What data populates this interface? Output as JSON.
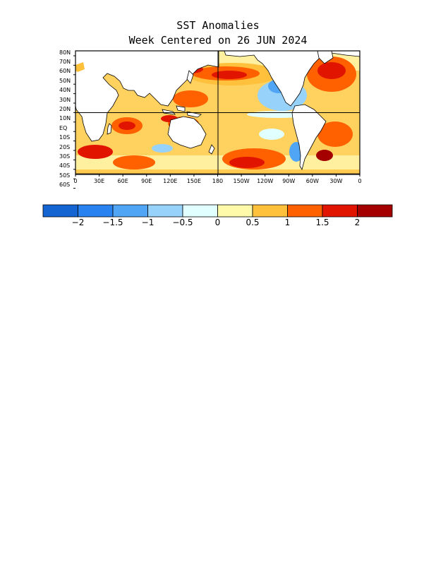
{
  "title": "SST Anomalies",
  "subtitle": "Week Centered on 26 JUN 2024",
  "map": {
    "projection": "equirectangular",
    "lon_range": [
      0,
      360
    ],
    "lat_range": [
      -65,
      85
    ],
    "center_lines": [
      "Equator",
      "180"
    ]
  },
  "lat_labels": [
    "80N",
    "70N",
    "60N",
    "50N",
    "40N",
    "30N",
    "20N",
    "10N",
    "EQ",
    "10S",
    "20S",
    "30S",
    "40S",
    "50S",
    "60S"
  ],
  "lon_labels": [
    "0",
    "30E",
    "60E",
    "90E",
    "120E",
    "150E",
    "180",
    "150W",
    "120W",
    "90W",
    "60W",
    "30W",
    "0"
  ],
  "colorbar": {
    "colors": [
      "#1464d2",
      "#2882f0",
      "#50a5f5",
      "#96d2fa",
      "#e1ffff",
      "#fffaaa",
      "#ffc03c",
      "#ff6000",
      "#e11400",
      "#a50000"
    ],
    "tick_labels": [
      "−2",
      "−1.5",
      "−1",
      "−0.5",
      "0",
      "0.5",
      "1",
      "1.5",
      "2"
    ]
  }
}
